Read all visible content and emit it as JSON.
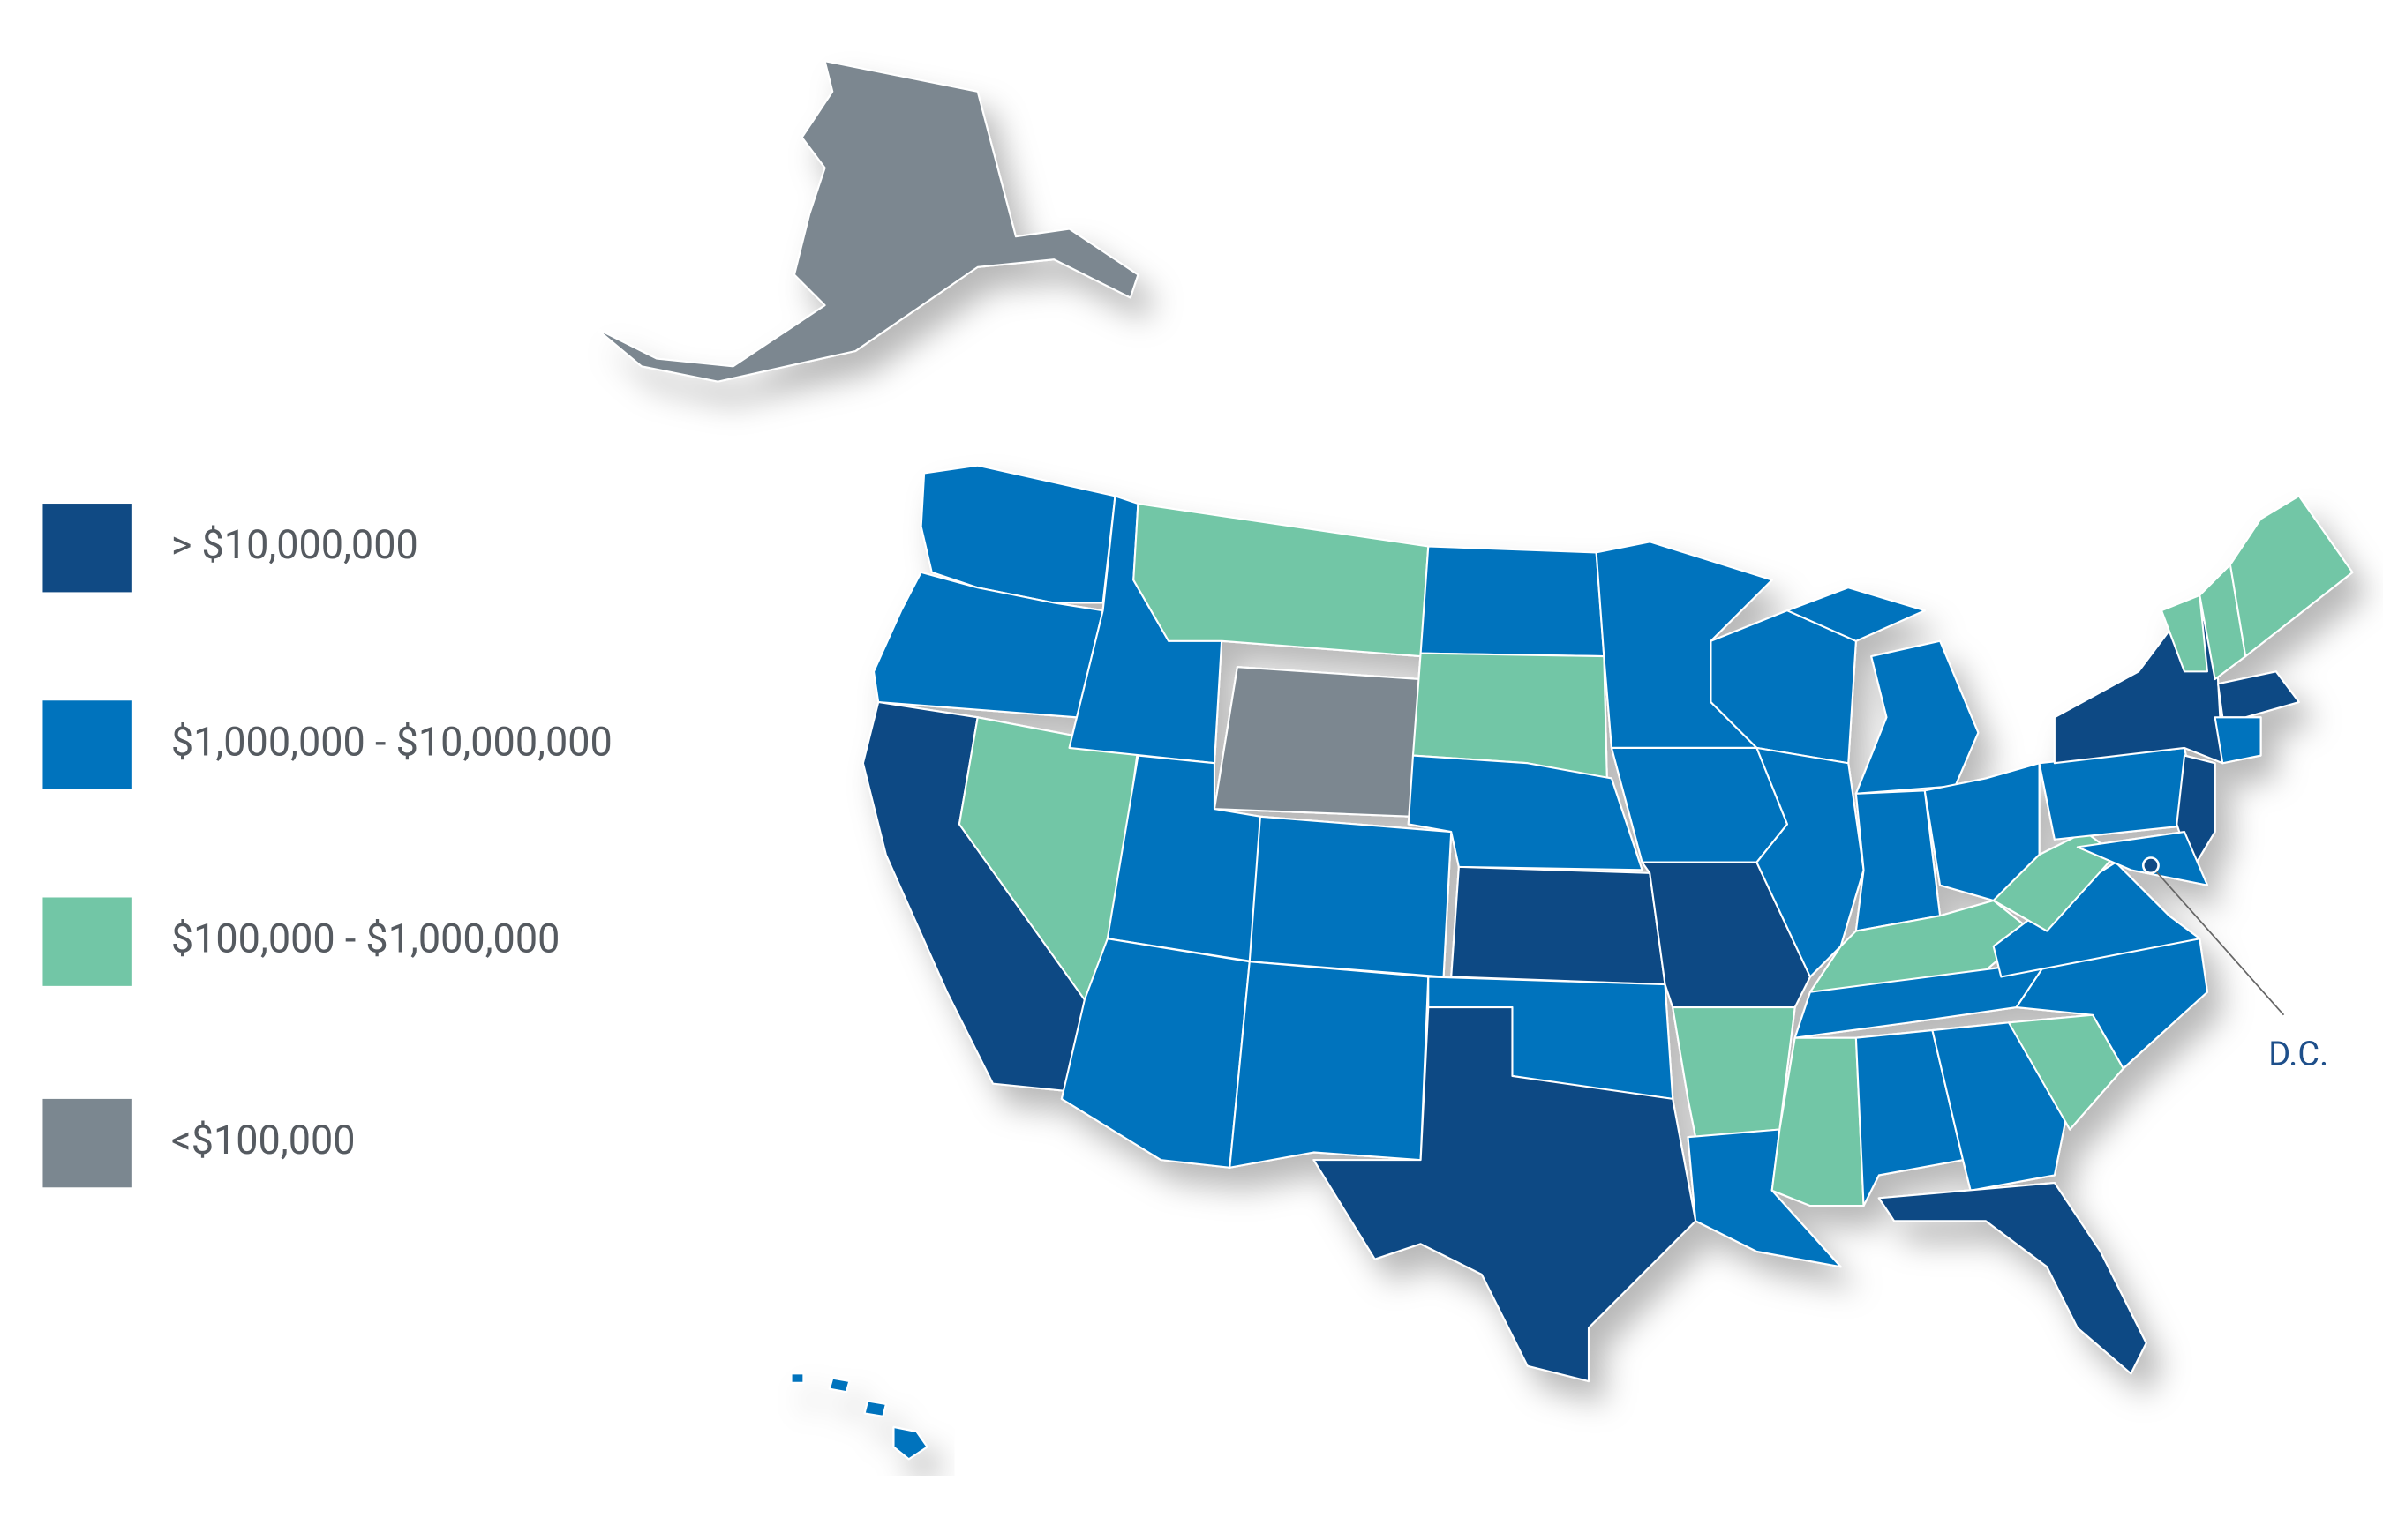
{
  "map": {
    "legend": [
      {
        "label": "> $10,000,000",
        "color": "#104a84"
      },
      {
        "label": "$1,000,000 - $10,000,000",
        "color": "#0073bd"
      },
      {
        "label": "$100,000 - $1,000,000",
        "color": "#72c6a6"
      },
      {
        "label": "<$100,000",
        "color": "#7b8790"
      }
    ],
    "annotation": "D.C."
  }
}
